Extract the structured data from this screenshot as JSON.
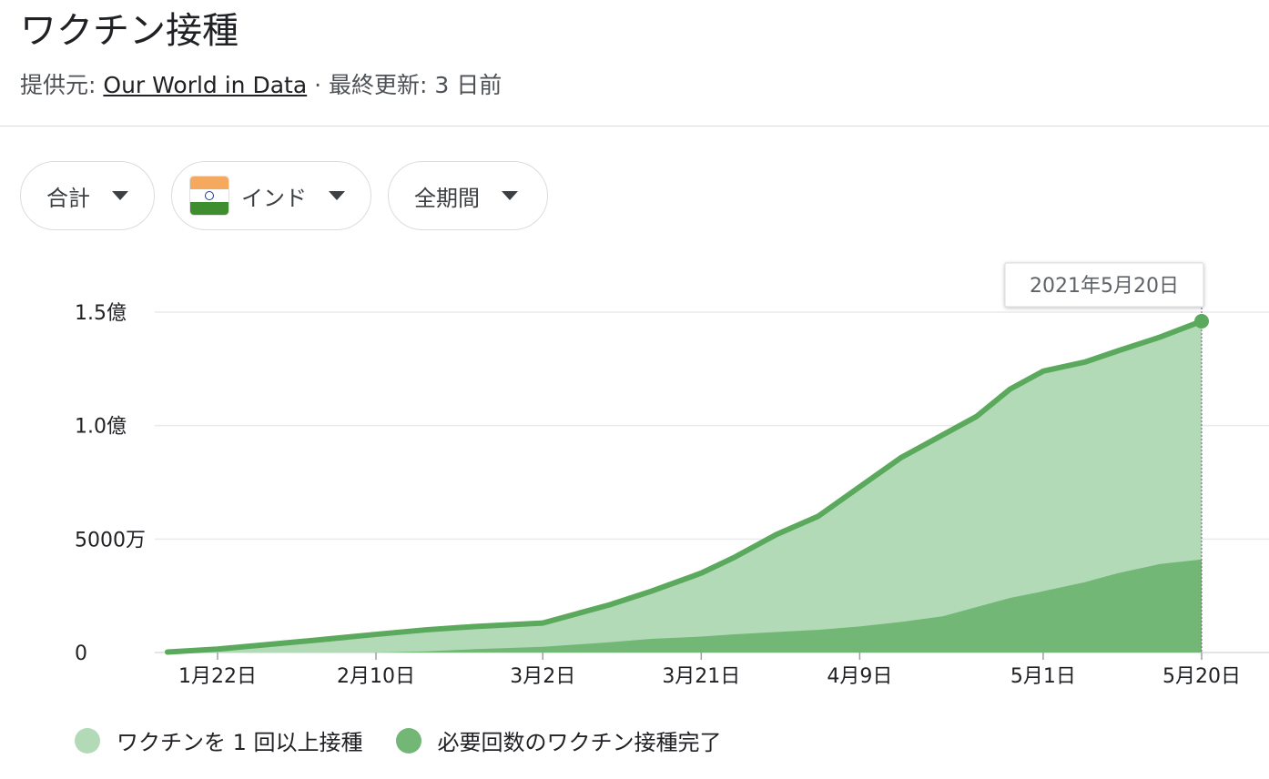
{
  "header": {
    "title": "ワクチン接種",
    "source_prefix": "提供元:",
    "source_link": "Our World in Data",
    "updated": "· 最終更新: 3 日前"
  },
  "filters": [
    {
      "label": "合計"
    },
    {
      "label": "インド",
      "icon": "india-flag-icon"
    },
    {
      "label": "全期間"
    }
  ],
  "tooltip": {
    "date": "2021年5月20日"
  },
  "colors": {
    "partial_fill": "#b2dab7",
    "full_fill": "#72b776",
    "line": "#5aa95c",
    "grid": "#e8eaed"
  },
  "chart_data": {
    "type": "area",
    "yaxis": {
      "ticks": [
        0,
        50000000,
        100000000,
        150000000
      ],
      "tick_labels": [
        "0",
        "5000万",
        "1.0億",
        "1.5億"
      ]
    },
    "xaxis": {
      "ticks": [
        "2021-01-22",
        "2021-02-10",
        "2021-03-02",
        "2021-03-21",
        "2021-04-09",
        "2021-05-01",
        "2021-05-20"
      ],
      "tick_labels": [
        "1月22日",
        "2月10日",
        "3月2日",
        "3月21日",
        "4月9日",
        "5月1日",
        "5月20日"
      ]
    },
    "x": [
      "2021-01-16",
      "2021-01-22",
      "2021-01-28",
      "2021-02-03",
      "2021-02-10",
      "2021-02-16",
      "2021-02-22",
      "2021-03-02",
      "2021-03-06",
      "2021-03-10",
      "2021-03-15",
      "2021-03-21",
      "2021-03-25",
      "2021-03-30",
      "2021-04-04",
      "2021-04-09",
      "2021-04-14",
      "2021-04-19",
      "2021-04-23",
      "2021-04-27",
      "2021-05-01",
      "2021-05-06",
      "2021-05-10",
      "2021-05-15",
      "2021-05-20"
    ],
    "series": [
      {
        "name": "ワクチンを 1 回以上接種",
        "values": [
          200000,
          1500000,
          3500000,
          5500000,
          8000000,
          10000000,
          11500000,
          13000000,
          17000000,
          21000000,
          27000000,
          35000000,
          42000000,
          52000000,
          60000000,
          73000000,
          86000000,
          96000000,
          104000000,
          116000000,
          124000000,
          128000000,
          133000000,
          139000000,
          146000000
        ]
      },
      {
        "name": "必要回数のワクチン接種完了",
        "values": [
          0,
          0,
          0,
          0,
          0,
          500000,
          1500000,
          2500000,
          3500000,
          4500000,
          6000000,
          7000000,
          8000000,
          9000000,
          10000000,
          11500000,
          13500000,
          16000000,
          20000000,
          24000000,
          27000000,
          31000000,
          35000000,
          39000000,
          41000000
        ]
      }
    ]
  }
}
